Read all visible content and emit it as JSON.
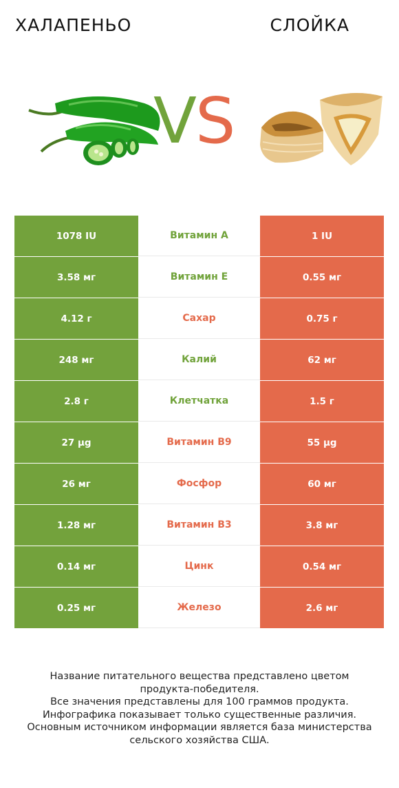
{
  "header": {
    "left_title": "ХАЛАПЕНЬО",
    "right_title": "СЛОЙКА",
    "vs_v": "V",
    "vs_s": "S"
  },
  "colors": {
    "left_accent": "#73a23c",
    "right_accent": "#e46a4b"
  },
  "images": {
    "left": "jalapeno-peppers-image",
    "right": "puff-pastry-image"
  },
  "rows": [
    {
      "left": "1078 IU",
      "nutrient": "Витамин A",
      "right": "1 IU",
      "winner": "left"
    },
    {
      "left": "3.58 мг",
      "nutrient": "Витамин E",
      "right": "0.55 мг",
      "winner": "left"
    },
    {
      "left": "4.12 г",
      "nutrient": "Сахар",
      "right": "0.75 г",
      "winner": "right"
    },
    {
      "left": "248 мг",
      "nutrient": "Калий",
      "right": "62 мг",
      "winner": "left"
    },
    {
      "left": "2.8 г",
      "nutrient": "Клетчатка",
      "right": "1.5 г",
      "winner": "left"
    },
    {
      "left": "27 µg",
      "nutrient": "Витамин B9",
      "right": "55 µg",
      "winner": "right"
    },
    {
      "left": "26 мг",
      "nutrient": "Фосфор",
      "right": "60 мг",
      "winner": "right"
    },
    {
      "left": "1.28 мг",
      "nutrient": "Витамин B3",
      "right": "3.8 мг",
      "winner": "right"
    },
    {
      "left": "0.14 мг",
      "nutrient": "Цинк",
      "right": "0.54 мг",
      "winner": "right"
    },
    {
      "left": "0.25 мг",
      "nutrient": "Железо",
      "right": "2.6 мг",
      "winner": "right"
    }
  ],
  "footer": {
    "line1": "Название питательного вещества представлено цветом",
    "line2": "продукта-победителя.",
    "line3": "Все значения представлены для 100 граммов продукта.",
    "line4": "Инфографика показывает только существенные различия.",
    "line5": "Основным источником информации является база министерства",
    "line6": "сельского хозяйства США."
  }
}
